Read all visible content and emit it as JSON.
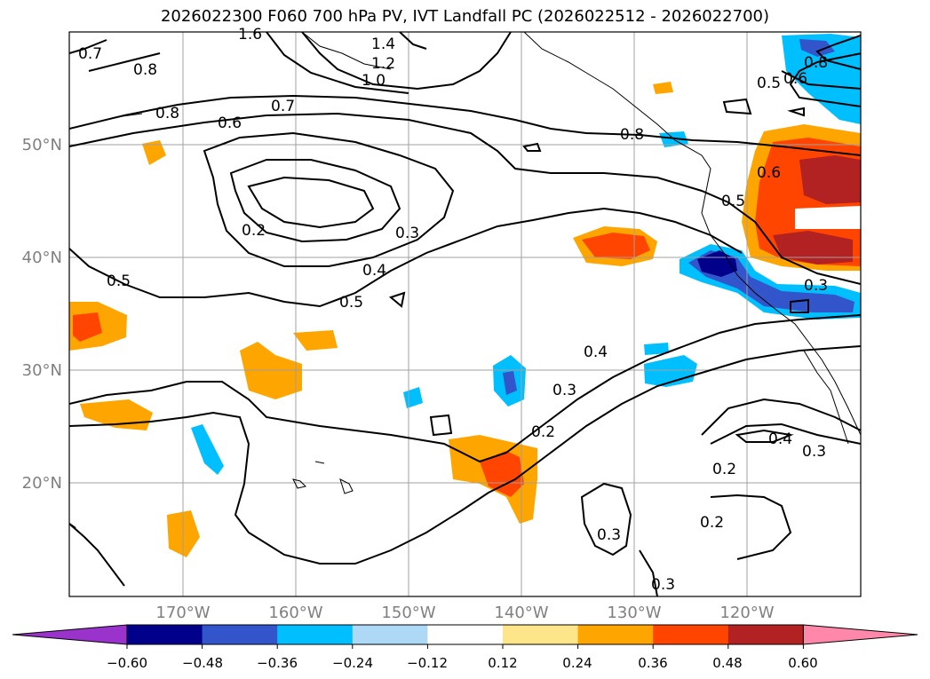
{
  "title": "2026022300 F060 700 hPa PV, IVT Landfall PC (2026022512 - 2026022700)",
  "lon_ticks": [
    "170°W",
    "160°W",
    "150°W",
    "140°W",
    "130°W",
    "120°W"
  ],
  "lat_ticks": [
    "50°N",
    "40°N",
    "30°N",
    "20°N"
  ],
  "pv_contour_labels": [
    "0.7",
    "0.8",
    "1.6",
    "1.4",
    "1.2",
    "1.0",
    "0.8",
    "0.7",
    "0.6",
    "0.8",
    "0.8",
    "0.6",
    "0.5",
    "0.6",
    "0.5",
    "0.2",
    "0.3",
    "0.4",
    "0.5",
    "0.5",
    "0.3",
    "0.4",
    "0.3",
    "0.2",
    "0.4",
    "0.3",
    "0.2",
    "0.2",
    "0.3",
    "0.3"
  ],
  "colorbar": {
    "ticks": [
      "−0.60",
      "−0.48",
      "−0.36",
      "−0.24",
      "−0.12",
      "0.12",
      "0.24",
      "0.36",
      "0.48",
      "0.60"
    ],
    "colors": [
      "#9933cc",
      "#00008b",
      "#3355cc",
      "#00bfff",
      "#add8f6",
      "#ffffff",
      "#fde68a",
      "#ffa500",
      "#ff4500",
      "#b22222",
      "#ff88aa"
    ]
  }
}
